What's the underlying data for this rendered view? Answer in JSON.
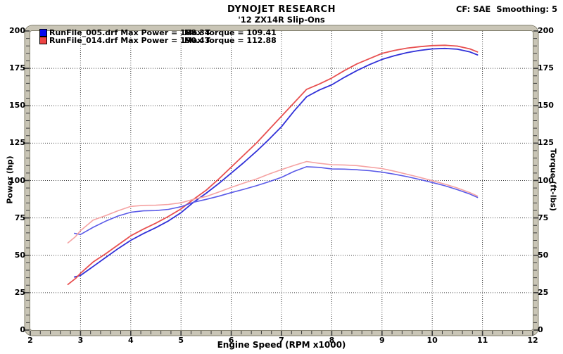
{
  "header": {
    "title": "DYNOJET RESEARCH",
    "subtitle": "'12 ZX14R Slip-Ons",
    "correction_info": "CF: SAE  Smoothing: 5"
  },
  "legend": {
    "rows": [
      {
        "swatch_color": "#0808ee",
        "left_text": "RunFile_005.drf Max Power = 188.34",
        "right_text": "Max Torque = 109.41"
      },
      {
        "swatch_color": "#ee4444",
        "left_text": "RunFile_014.drf Max Power = 190.43",
        "right_text": "Max Torque = 112.88"
      }
    ]
  },
  "colors": {
    "power_blue": "#3030d8",
    "power_red": "#e85050",
    "torque_blue": "#5a5ae8",
    "torque_red": "#f5a2a2",
    "grid": "#404040",
    "tick": "#3a3a3a",
    "frame_fill": "#c9c5b6",
    "frame_dark": "#84816f",
    "frame_light": "#eceade"
  },
  "chart_data": {
    "type": "line",
    "title": "'12 ZX14R Slip-Ons",
    "xlabel": "Engine Speed (RPM x1000)",
    "ylabel_left": "Power (hp)",
    "ylabel_right": "Torque (ft-lbs)",
    "xlim": [
      2,
      12
    ],
    "ylim": [
      0,
      200
    ],
    "x_ticks": [
      2,
      3,
      4,
      5,
      6,
      7,
      8,
      9,
      10,
      11,
      12
    ],
    "y_ticks_left": [
      0,
      25,
      50,
      75,
      100,
      125,
      150,
      175,
      200
    ],
    "y_ticks_right": [
      0,
      25,
      50,
      75,
      100,
      125,
      150,
      175,
      200
    ],
    "grid": "dotted",
    "legend_position": "top-left",
    "series": [
      {
        "name": "RunFile_005.drf Power (hp)",
        "run": "RunFile_005.drf",
        "quantity": "power",
        "color_key": "power_blue",
        "max": 188.34,
        "points": [
          [
            2.88,
            35.5
          ],
          [
            3.0,
            36.5
          ],
          [
            3.25,
            42.5
          ],
          [
            3.5,
            48.5
          ],
          [
            3.75,
            54.5
          ],
          [
            4.0,
            60.0
          ],
          [
            4.25,
            64.5
          ],
          [
            4.5,
            68.5
          ],
          [
            4.75,
            73.0
          ],
          [
            5.0,
            78.5
          ],
          [
            5.25,
            85.5
          ],
          [
            5.5,
            91.5
          ],
          [
            5.75,
            98.0
          ],
          [
            6.0,
            105.0
          ],
          [
            6.25,
            112.0
          ],
          [
            6.5,
            119.5
          ],
          [
            6.75,
            127.5
          ],
          [
            7.0,
            136.0
          ],
          [
            7.25,
            146.5
          ],
          [
            7.5,
            156.0
          ],
          [
            7.75,
            160.5
          ],
          [
            8.0,
            164.0
          ],
          [
            8.25,
            169.0
          ],
          [
            8.5,
            173.5
          ],
          [
            8.75,
            177.5
          ],
          [
            9.0,
            181.0
          ],
          [
            9.25,
            183.5
          ],
          [
            9.5,
            185.5
          ],
          [
            9.75,
            187.0
          ],
          [
            10.0,
            188.0
          ],
          [
            10.25,
            188.34
          ],
          [
            10.5,
            187.8
          ],
          [
            10.75,
            186.0
          ],
          [
            10.9,
            184.0
          ]
        ]
      },
      {
        "name": "RunFile_014.drf Power (hp)",
        "run": "RunFile_014.drf",
        "quantity": "power",
        "color_key": "power_red",
        "max": 190.43,
        "points": [
          [
            2.75,
            30.5
          ],
          [
            2.9,
            34.5
          ],
          [
            3.0,
            38.0
          ],
          [
            3.25,
            45.5
          ],
          [
            3.5,
            51.0
          ],
          [
            3.75,
            57.0
          ],
          [
            4.0,
            63.0
          ],
          [
            4.25,
            67.5
          ],
          [
            4.5,
            71.5
          ],
          [
            4.75,
            76.0
          ],
          [
            5.0,
            81.0
          ],
          [
            5.25,
            87.5
          ],
          [
            5.5,
            93.5
          ],
          [
            5.75,
            101.0
          ],
          [
            6.0,
            109.0
          ],
          [
            6.25,
            117.0
          ],
          [
            6.5,
            125.0
          ],
          [
            6.75,
            134.0
          ],
          [
            7.0,
            143.0
          ],
          [
            7.25,
            152.0
          ],
          [
            7.5,
            161.0
          ],
          [
            7.75,
            164.5
          ],
          [
            8.0,
            168.5
          ],
          [
            8.25,
            173.5
          ],
          [
            8.5,
            178.0
          ],
          [
            8.75,
            181.5
          ],
          [
            9.0,
            185.0
          ],
          [
            9.25,
            187.0
          ],
          [
            9.5,
            188.5
          ],
          [
            9.75,
            189.5
          ],
          [
            10.0,
            190.2
          ],
          [
            10.25,
            190.43
          ],
          [
            10.5,
            189.9
          ],
          [
            10.75,
            188.0
          ],
          [
            10.9,
            186.0
          ]
        ]
      },
      {
        "name": "RunFile_005.drf Torque (ft-lbs)",
        "run": "RunFile_005.drf",
        "quantity": "torque",
        "color_key": "torque_blue",
        "max": 109.41,
        "points": [
          [
            2.88,
            64.7
          ],
          [
            3.0,
            63.9
          ],
          [
            3.25,
            68.7
          ],
          [
            3.5,
            72.8
          ],
          [
            3.75,
            76.3
          ],
          [
            4.0,
            78.8
          ],
          [
            4.25,
            79.7
          ],
          [
            4.5,
            79.9
          ],
          [
            4.75,
            80.7
          ],
          [
            5.0,
            82.5
          ],
          [
            5.25,
            85.5
          ],
          [
            5.5,
            87.4
          ],
          [
            5.75,
            89.5
          ],
          [
            6.0,
            91.9
          ],
          [
            6.25,
            94.1
          ],
          [
            6.5,
            96.5
          ],
          [
            6.75,
            99.2
          ],
          [
            7.0,
            102.1
          ],
          [
            7.25,
            106.1
          ],
          [
            7.5,
            109.2
          ],
          [
            7.75,
            108.8
          ],
          [
            8.0,
            107.7
          ],
          [
            8.25,
            107.6
          ],
          [
            8.5,
            107.2
          ],
          [
            8.75,
            106.6
          ],
          [
            9.0,
            105.6
          ],
          [
            9.25,
            104.2
          ],
          [
            9.5,
            102.6
          ],
          [
            9.75,
            100.7
          ],
          [
            10.0,
            98.7
          ],
          [
            10.25,
            96.5
          ],
          [
            10.5,
            93.9
          ],
          [
            10.75,
            90.9
          ],
          [
            10.9,
            88.7
          ]
        ]
      },
      {
        "name": "RunFile_014.drf Torque (ft-lbs)",
        "run": "RunFile_014.drf",
        "quantity": "torque",
        "color_key": "torque_red",
        "max": 112.88,
        "points": [
          [
            2.75,
            58.3
          ],
          [
            2.9,
            62.5
          ],
          [
            3.0,
            66.5
          ],
          [
            3.25,
            73.5
          ],
          [
            3.5,
            76.5
          ],
          [
            3.75,
            79.8
          ],
          [
            4.0,
            82.7
          ],
          [
            4.25,
            83.4
          ],
          [
            4.5,
            83.5
          ],
          [
            4.75,
            84.0
          ],
          [
            5.0,
            85.1
          ],
          [
            5.25,
            87.5
          ],
          [
            5.5,
            89.3
          ],
          [
            5.75,
            92.3
          ],
          [
            6.0,
            95.4
          ],
          [
            6.25,
            98.3
          ],
          [
            6.5,
            101.0
          ],
          [
            6.75,
            104.3
          ],
          [
            7.0,
            107.3
          ],
          [
            7.25,
            110.1
          ],
          [
            7.5,
            112.7
          ],
          [
            7.75,
            111.5
          ],
          [
            8.0,
            110.6
          ],
          [
            8.25,
            110.4
          ],
          [
            8.5,
            110.0
          ],
          [
            8.75,
            109.0
          ],
          [
            9.0,
            108.0
          ],
          [
            9.25,
            106.2
          ],
          [
            9.5,
            104.2
          ],
          [
            9.75,
            102.1
          ],
          [
            10.0,
            99.9
          ],
          [
            10.25,
            97.6
          ],
          [
            10.5,
            95.0
          ],
          [
            10.75,
            91.9
          ],
          [
            10.9,
            89.6
          ]
        ]
      }
    ]
  }
}
